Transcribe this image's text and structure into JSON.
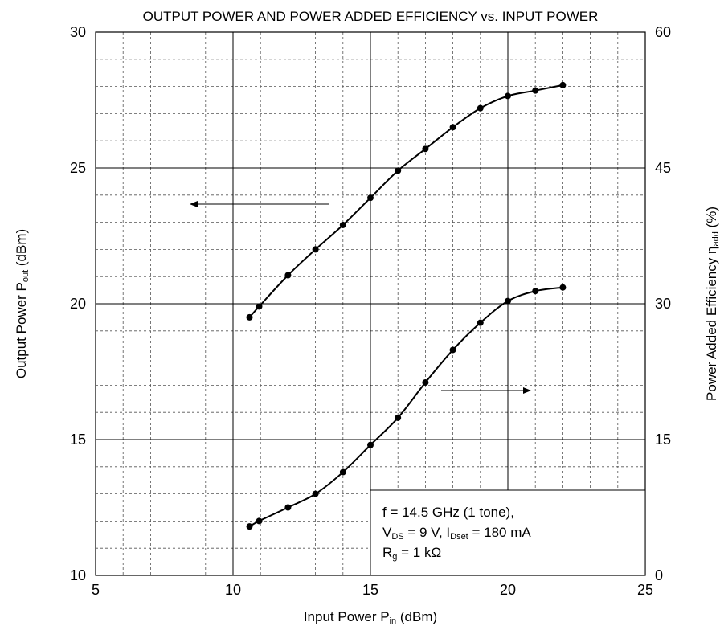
{
  "chart_data": {
    "type": "line",
    "title": "OUTPUT POWER AND POWER ADDED EFFICIENCY vs. INPUT POWER",
    "xlabel": {
      "main": "Input Power  P",
      "sub": "in",
      "unit": " (dBm)"
    },
    "ylabel_left": {
      "main": "Output Power  P",
      "sub": "out",
      "unit": " (dBm)"
    },
    "ylabel_right": {
      "main": "Power Added Efficiency  η",
      "sub": "add",
      "unit": " (%)"
    },
    "xlim": [
      5,
      25
    ],
    "ylim_left": [
      10,
      30
    ],
    "ylim_right": [
      0,
      60
    ],
    "xticks": [
      "5",
      "10",
      "15",
      "20",
      "25"
    ],
    "yticks_left": [
      "10",
      "15",
      "20",
      "25",
      "30"
    ],
    "yticks_right": [
      "0",
      "15",
      "30",
      "45",
      "60"
    ],
    "grid": true,
    "series": [
      {
        "axis": "left",
        "x": [
          10.6,
          10.95,
          12,
          13,
          14,
          15,
          16,
          17,
          18,
          19,
          20,
          21,
          22
        ],
        "y": [
          19.5,
          19.9,
          21.05,
          22.0,
          22.9,
          23.9,
          24.9,
          25.7,
          26.5,
          27.2,
          27.65,
          27.85,
          28.05
        ]
      },
      {
        "axis": "right",
        "x": [
          10.6,
          10.95,
          12,
          13,
          14,
          15,
          16,
          17,
          18,
          19,
          20,
          21,
          22
        ],
        "y": [
          5.4,
          6.0,
          7.5,
          9.0,
          11.4,
          14.4,
          17.4,
          21.3,
          24.9,
          27.9,
          30.3,
          31.4,
          31.8
        ]
      }
    ],
    "annotation": {
      "line1": "f = 14.5 GHz (1 tone),",
      "line2": {
        "v": "V",
        "v_sub": "DS",
        "mid": " = 9 V, I",
        "i_sub": "Dset",
        "end": " = 180 mA"
      },
      "line3": {
        "r": "R",
        "r_sub": "g",
        "end": " = 1 kΩ"
      }
    }
  }
}
